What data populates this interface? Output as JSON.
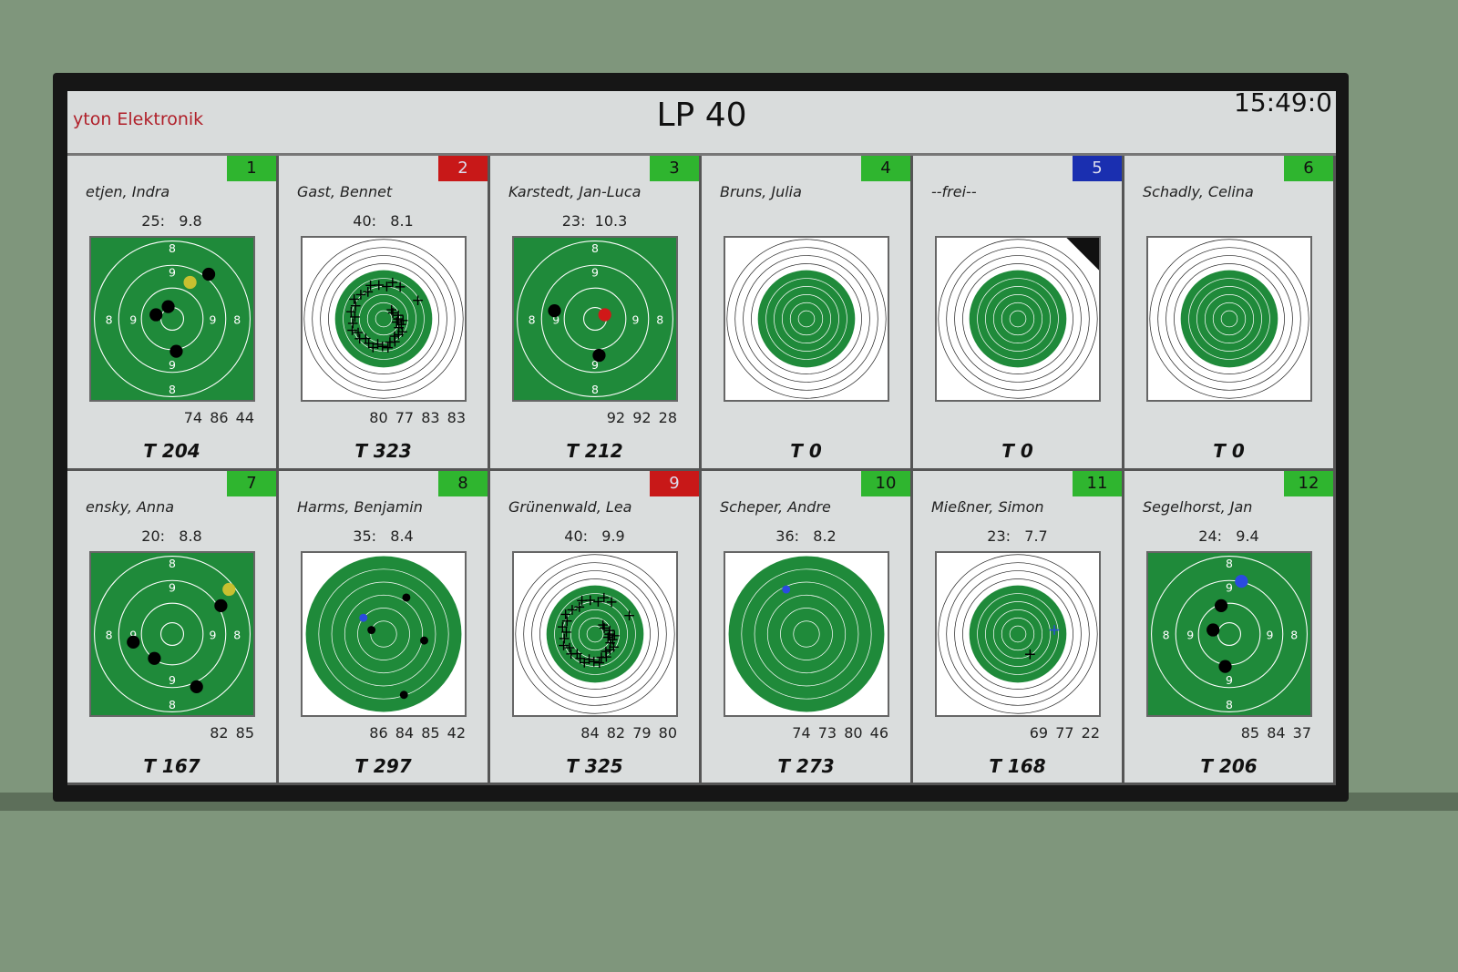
{
  "header": {
    "brand": "yton Elektronik",
    "title": "LP 40",
    "clock": "15:49:0"
  },
  "colors": {
    "green": "#2fb52f",
    "red": "#c81818",
    "blue": "#1a2fb0",
    "target_green": "#1f8a3a"
  },
  "lanes": [
    {
      "number": "1",
      "badge": "green",
      "name": "etjen, Indra",
      "shot": "25:   9.8",
      "series": "74 86 44",
      "total": "T 204",
      "view": "zoomed"
    },
    {
      "number": "2",
      "badge": "red",
      "name": "Gast, Bennet",
      "shot": "40:   8.1",
      "series": "80 77 83 83",
      "total": "T 323",
      "view": "full"
    },
    {
      "number": "3",
      "badge": "green",
      "name": "Karstedt, Jan-Luca",
      "shot": "23:  10.3",
      "series": "92 92 28",
      "total": "T 212",
      "view": "zoomed"
    },
    {
      "number": "4",
      "badge": "green",
      "name": "Bruns, Julia",
      "shot": "",
      "series": "",
      "total": "T 0",
      "view": "full"
    },
    {
      "number": "5",
      "badge": "blue",
      "name": "--frei--",
      "shot": "",
      "series": "",
      "total": "T 0",
      "view": "full"
    },
    {
      "number": "6",
      "badge": "green",
      "name": "Schadly, Celina",
      "shot": "",
      "series": "",
      "total": "T 0",
      "view": "full"
    },
    {
      "number": "7",
      "badge": "green",
      "name": "ensky, Anna",
      "shot": "20:   8.8",
      "series": "82 85",
      "total": "T 167",
      "view": "zoomed"
    },
    {
      "number": "8",
      "badge": "green",
      "name": "Harms, Benjamin",
      "shot": "35:   8.4",
      "series": "86 84 85 42",
      "total": "T 297",
      "view": "mid"
    },
    {
      "number": "9",
      "badge": "red",
      "name": "Grünenwald, Lea",
      "shot": "40:   9.9",
      "series": "84 82 79 80",
      "total": "T 325",
      "view": "full"
    },
    {
      "number": "10",
      "badge": "green",
      "name": "Scheper, Andre",
      "shot": "36:   8.2",
      "series": "74 73 80 46",
      "total": "T 273",
      "view": "mid"
    },
    {
      "number": "11",
      "badge": "green",
      "name": "Mießner, Simon",
      "shot": "23:   7.7",
      "series": "69 77 22",
      "total": "T 168",
      "view": "full"
    },
    {
      "number": "12",
      "badge": "green",
      "name": "Segelhorst, Jan",
      "shot": "24:   9.4",
      "series": "85 84 37",
      "total": "T 206",
      "view": "zoomed"
    }
  ]
}
